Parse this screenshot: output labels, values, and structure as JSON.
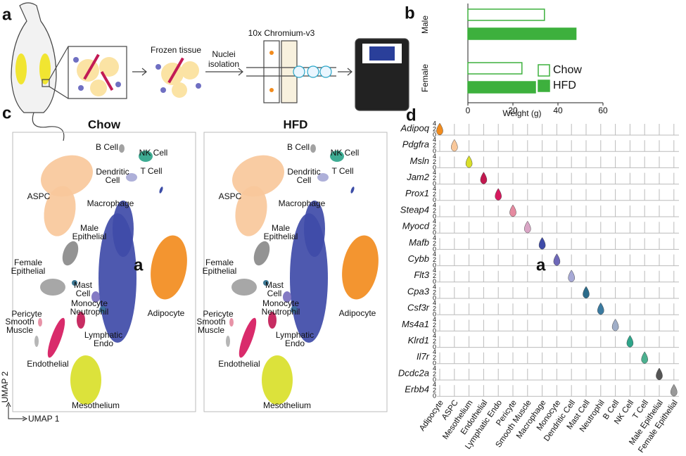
{
  "panel_labels": [
    "a",
    "b",
    "c",
    "d"
  ],
  "panel_a": {
    "frozen": "Frozen tissue",
    "nuclei": [
      "Nuclei",
      "isolation"
    ],
    "chromium": "10x Chromium-v3"
  },
  "chart_data": {
    "type": "bar",
    "orientation": "horizontal",
    "categories": [
      "Male",
      "Female"
    ],
    "series": [
      {
        "name": "Chow",
        "color": "#3db03d",
        "values": [
          34,
          24
        ]
      },
      {
        "name": "HFD",
        "color": "#3db03d",
        "values": [
          48,
          30
        ]
      }
    ],
    "xlabel": "Weight (g)",
    "xlim": [
      0,
      60
    ],
    "xticks": [
      0,
      20,
      40,
      60
    ]
  },
  "panel_c": {
    "titles": [
      "Chow",
      "HFD"
    ],
    "x_axis": "UMAP 1",
    "y_axis": "UMAP 2",
    "annotation": "a",
    "clusters": [
      {
        "label": [
          "ASPC"
        ],
        "color": "#f9c89b"
      },
      {
        "label": [
          "Macrophage"
        ],
        "color": "#3f4ba8"
      },
      {
        "label": [
          "Adipocyte"
        ],
        "color": "#f28c1e"
      },
      {
        "label": [
          "Mesothelium"
        ],
        "color": "#d9df2a"
      },
      {
        "label": [
          "Endothelial"
        ],
        "color": "#d6195e"
      },
      {
        "label": [
          "Male",
          "Epithelial"
        ],
        "color": "#8a8a8a"
      },
      {
        "label": [
          "Female",
          "Epithelial"
        ],
        "color": "#a0a0a0"
      },
      {
        "label": [
          "Mast",
          "Cell"
        ],
        "color": "#2b6b8a"
      },
      {
        "label": [
          "Monocyte"
        ],
        "color": "#7a6fbf"
      },
      {
        "label": [
          "Neutrophil"
        ],
        "color": "#3a6f9a"
      },
      {
        "label": [
          "Pericyte"
        ],
        "color": "#e58aa0"
      },
      {
        "label": [
          "Smooth",
          "Muscle"
        ],
        "color": "#b0b0b0"
      },
      {
        "label": [
          "Lymphatic",
          "Endo"
        ],
        "color": "#c21a55"
      },
      {
        "label": [
          "B Cell"
        ],
        "color": "#9a9a9a"
      },
      {
        "label": [
          "NK Cell"
        ],
        "color": "#2ea58a"
      },
      {
        "label": [
          "Dendritic",
          "Cell"
        ],
        "color": "#a7a9d6"
      },
      {
        "label": [
          "T Cell"
        ],
        "color": "#2b3ea0"
      }
    ]
  },
  "panel_d": {
    "annotation": "a",
    "yticks": [
      4,
      2,
      0
    ],
    "genes": [
      "Adipoq",
      "Pdgfra",
      "Msln",
      "Jam2",
      "Prox1",
      "Steap4",
      "Myocd",
      "Mafb",
      "Cybb",
      "Flt3",
      "Cpa3",
      "Csf3r",
      "Ms4a1",
      "Klrd1",
      "Il7r",
      "Dcdc2a",
      "Erbb4"
    ],
    "cell_types": [
      "Adipocyte",
      "ASPC",
      "Mesothelium",
      "Endothelial",
      "Lymphatic Endo",
      "Pericyte",
      "Smooth Muscle",
      "Macrophage",
      "Monocyte",
      "Dendritic Cell",
      "Mast Cell",
      "Neutrophil",
      "B Cell",
      "NK Cell",
      "T Cell",
      "Male Epithelial",
      "Female Epithelial"
    ],
    "colors": [
      "#f28c1e",
      "#f9c89b",
      "#d9df2a",
      "#c2184f",
      "#d6195e",
      "#e58aa0",
      "#d9a5c5",
      "#3f4ba8",
      "#6e68b8",
      "#a7a9d6",
      "#2b6b8a",
      "#3a7aa0",
      "#a0aec8",
      "#2ea58a",
      "#4cb08f",
      "#555555",
      "#999999"
    ]
  }
}
